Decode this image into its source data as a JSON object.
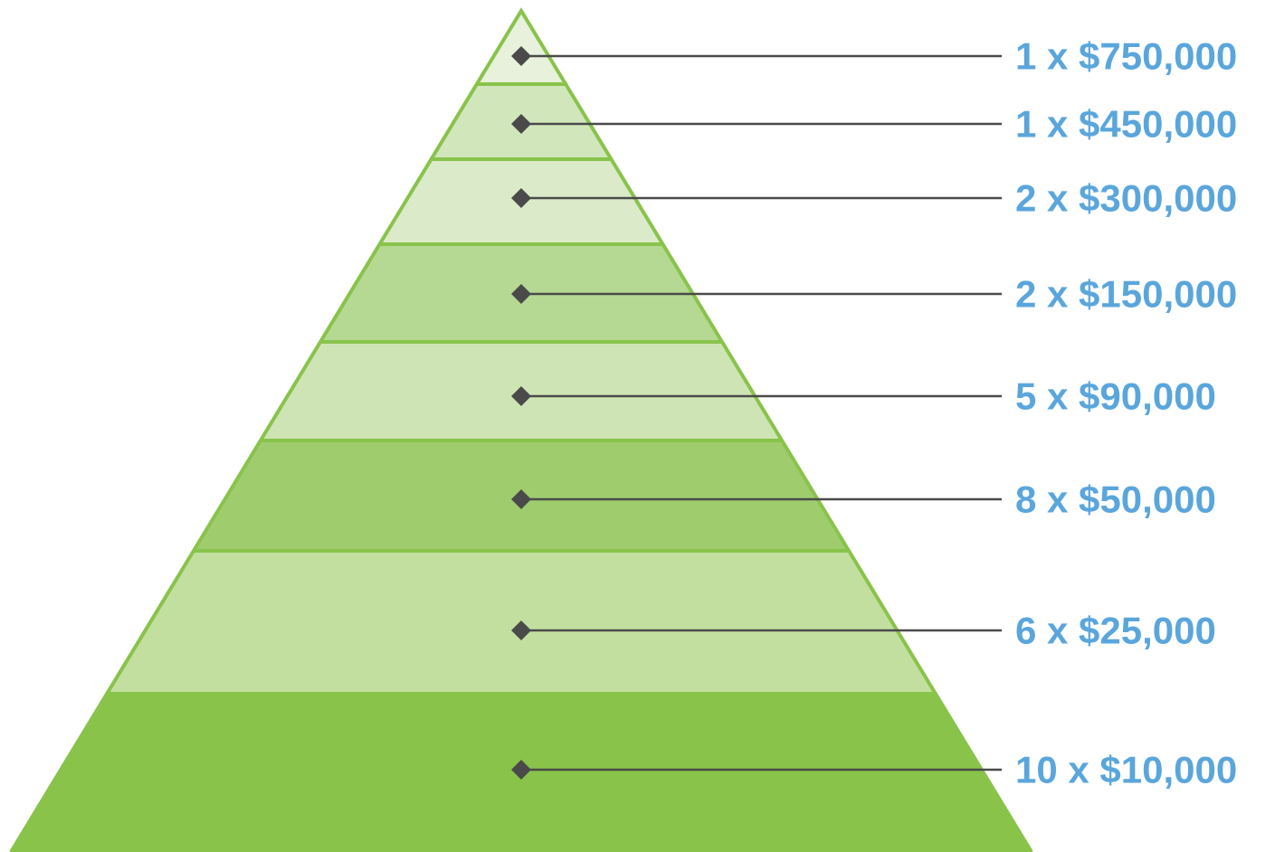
{
  "colors": {
    "accent_label": "#5aa6dc",
    "pyramid_outline": "#88c34a",
    "leader_line": "#4a4a4a",
    "diamond": "#4a4a4a"
  },
  "tiers": [
    {
      "label": "1 x $750,000",
      "count": 1,
      "amount": 750000,
      "fill": "#e7f1dc"
    },
    {
      "label": "1 x $450,000",
      "count": 1,
      "amount": 450000,
      "fill": "#d2e6bc"
    },
    {
      "label": "2 x $300,000",
      "count": 2,
      "amount": 300000,
      "fill": "#dbebc9"
    },
    {
      "label": "2 x $150,000",
      "count": 2,
      "amount": 150000,
      "fill": "#b5d992"
    },
    {
      "label": "5 x $90,000",
      "count": 5,
      "amount": 90000,
      "fill": "#cfe4b5"
    },
    {
      "label": "8 x $50,000",
      "count": 8,
      "amount": 50000,
      "fill": "#9fcd6e"
    },
    {
      "label": "6 x $25,000",
      "count": 6,
      "amount": 25000,
      "fill": "#c3df9f"
    },
    {
      "label": "10 x $10,000",
      "count": 10,
      "amount": 10000,
      "fill": "#89c34a"
    }
  ]
}
